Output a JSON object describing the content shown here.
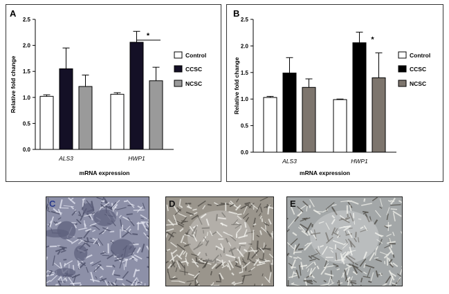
{
  "chart_data": [
    {
      "type": "bar",
      "panel_label": "A",
      "categories": [
        "ALS3",
        "HWP1"
      ],
      "series": [
        {
          "name": "Control",
          "values": [
            1.02,
            1.06
          ],
          "errors": [
            0.03,
            0.03
          ]
        },
        {
          "name": "CCSC",
          "values": [
            1.55,
            2.06
          ],
          "errors": [
            0.4,
            0.21
          ]
        },
        {
          "name": "NCSC",
          "values": [
            1.21,
            1.32
          ],
          "errors": [
            0.22,
            0.26
          ]
        }
      ],
      "xlabel": "mRNA expression",
      "ylabel": "Relative fold change",
      "ylim": [
        0,
        2.5
      ],
      "yticks": [
        "0.0",
        "0.5",
        "1.0",
        "1.5",
        "2.0",
        "2.5"
      ],
      "significance": "*",
      "legend_placement": "right",
      "colors": {
        "Control": "#ffffff",
        "CCSC": "#141026",
        "NCSC": "#9a9a9a"
      }
    },
    {
      "type": "bar",
      "panel_label": "B",
      "categories": [
        "ALS3",
        "HWP1"
      ],
      "series": [
        {
          "name": "Control",
          "values": [
            1.03,
            0.99
          ],
          "errors": [
            0.02,
            0.01
          ]
        },
        {
          "name": "CCSC",
          "values": [
            1.49,
            2.06
          ],
          "errors": [
            0.29,
            0.2
          ]
        },
        {
          "name": "NCSC",
          "values": [
            1.22,
            1.4
          ],
          "errors": [
            0.16,
            0.47
          ]
        }
      ],
      "xlabel": "mRNA expression",
      "ylabel": "Relative fold change",
      "ylim": [
        0,
        2.5
      ],
      "yticks": [
        "0.0",
        "0.5",
        "1.0",
        "1.5",
        "2.0",
        "2.5"
      ],
      "significance": "*",
      "legend_placement": "right",
      "colors": {
        "Control": "#ffffff",
        "CCSC": "#000000",
        "NCSC": "#7d756d"
      }
    }
  ],
  "micrographs": [
    {
      "label": "C",
      "label_color": "#2a3a8a",
      "tone": "#8d90a8"
    },
    {
      "label": "D",
      "label_color": "#111111",
      "tone": "#9a958c"
    },
    {
      "label": "E",
      "label_color": "#111111",
      "tone": "#a3a7a8"
    }
  ]
}
